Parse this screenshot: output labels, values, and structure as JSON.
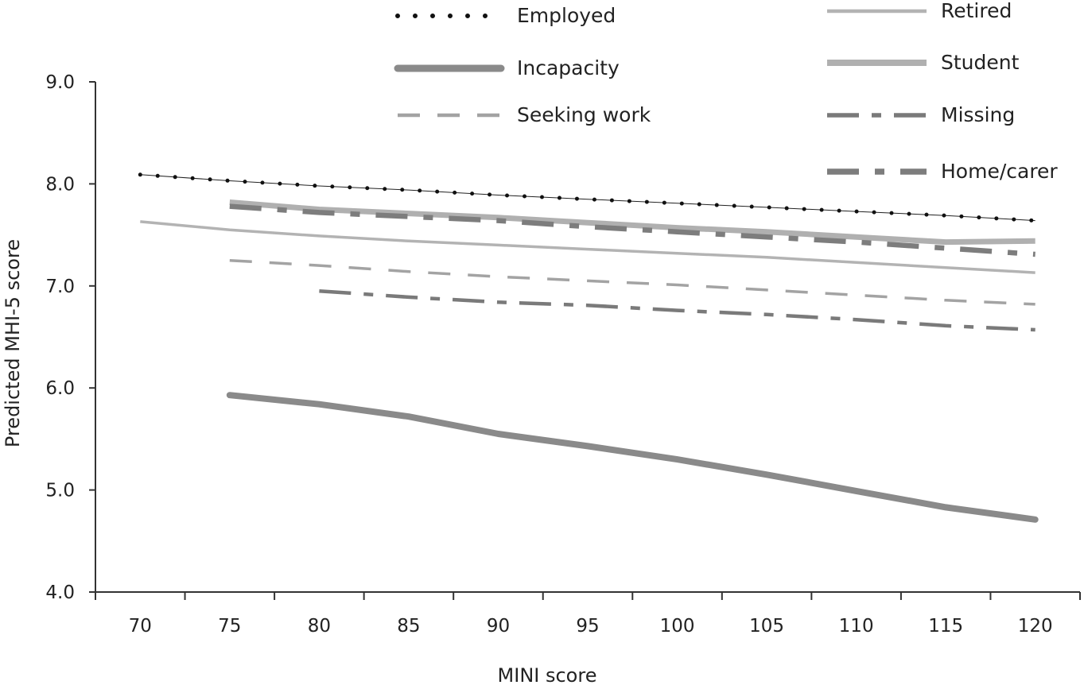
{
  "chart_data": {
    "type": "line",
    "title": "",
    "xlabel": "MINI score",
    "ylabel": "Predicted MHI-5 score",
    "x_ticks": [
      "70",
      "75",
      "80",
      "85",
      "90",
      "95",
      "100",
      "105",
      "110",
      "115",
      "120"
    ],
    "y_ticks": [
      "4.0",
      "5.0",
      "6.0",
      "7.0",
      "8.0",
      "9.0"
    ],
    "xlim": [
      67.5,
      122.5
    ],
    "ylim": [
      4.0,
      9.0
    ],
    "grid": false,
    "legend_position": "top",
    "series": [
      {
        "name": "Employed",
        "style": "dotted",
        "color": "#111111",
        "x": [
          70,
          75,
          80,
          85,
          90,
          95,
          100,
          105,
          110,
          115,
          120
        ],
        "y": [
          8.09,
          8.03,
          7.98,
          7.94,
          7.89,
          7.85,
          7.81,
          7.77,
          7.73,
          7.69,
          7.64
        ]
      },
      {
        "name": "Incapacity",
        "style": "thick",
        "color": "#8a8a8a",
        "x": [
          75,
          80,
          85,
          90,
          95,
          100,
          105,
          110,
          115,
          120
        ],
        "y": [
          5.93,
          5.84,
          5.72,
          5.55,
          5.43,
          5.3,
          5.15,
          4.99,
          4.83,
          4.71
        ]
      },
      {
        "name": "Seeking work",
        "style": "dashed",
        "color": "#a3a3a3",
        "x": [
          75,
          80,
          85,
          90,
          95,
          100,
          105,
          110,
          115,
          120
        ],
        "y": [
          7.25,
          7.2,
          7.14,
          7.09,
          7.05,
          7.01,
          6.96,
          6.91,
          6.86,
          6.82
        ]
      },
      {
        "name": "Retired",
        "style": "solid",
        "color": "#b3b3b3",
        "x": [
          70,
          75,
          80,
          85,
          90,
          95,
          100,
          105,
          110,
          115,
          120
        ],
        "y": [
          7.63,
          7.55,
          7.49,
          7.44,
          7.4,
          7.36,
          7.32,
          7.28,
          7.23,
          7.18,
          7.13
        ]
      },
      {
        "name": "Student",
        "style": "solid-thick",
        "color": "#b0b0b0",
        "x": [
          75,
          80,
          85,
          90,
          95,
          100,
          105,
          110,
          115,
          120
        ],
        "y": [
          7.82,
          7.75,
          7.71,
          7.67,
          7.62,
          7.57,
          7.53,
          7.48,
          7.43,
          7.44
        ]
      },
      {
        "name": "Missing",
        "style": "dash-dot",
        "color": "#7a7a7a",
        "x": [
          80,
          85,
          90,
          95,
          100,
          105,
          110,
          115,
          120
        ],
        "y": [
          6.95,
          6.89,
          6.84,
          6.81,
          6.76,
          6.72,
          6.67,
          6.61,
          6.57
        ]
      },
      {
        "name": "Home/carer",
        "style": "long-dash-short",
        "color": "#7d7d7d",
        "x": [
          75,
          80,
          85,
          90,
          95,
          100,
          105,
          110,
          115,
          120
        ],
        "y": [
          7.78,
          7.72,
          7.68,
          7.64,
          7.58,
          7.53,
          7.48,
          7.43,
          7.37,
          7.31
        ]
      }
    ]
  }
}
